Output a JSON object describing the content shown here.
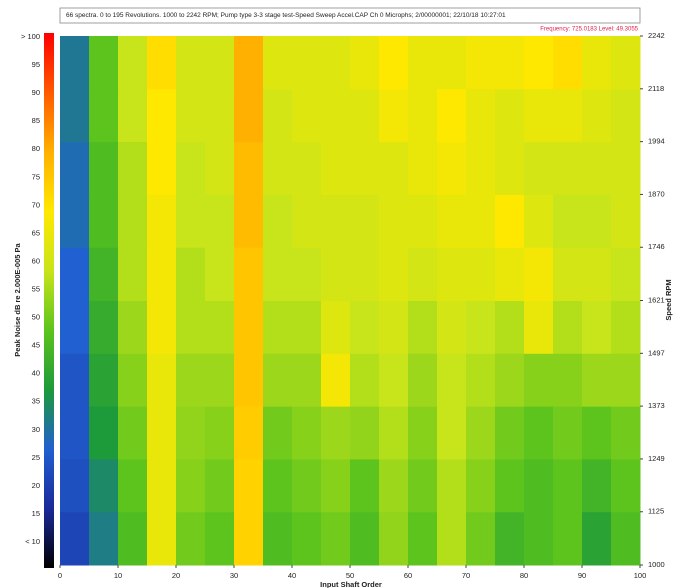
{
  "chart_data": {
    "type": "heatmap",
    "title": "66 spectra. 0 to 195 Revolutions. 1000 to 2242 RPM; Pump type 3-3 stage test-Speed Sweep Accel.CAP Ch 0 Microphs; 2/00000001; 22/10/18 10:27:01",
    "annotation": "Frequency: 725.0183  Level: 49.3055",
    "x_label": "Input Shaft Order",
    "y_label": "Speed RPM",
    "colorbar_label": "Peak Noise dB re 2.000E-005 Pa",
    "xlim": [
      0,
      100
    ],
    "xticks": [
      0,
      10,
      20,
      30,
      40,
      50,
      60,
      70,
      80,
      90,
      100
    ],
    "ylim": [
      1000,
      2242
    ],
    "yticks": [
      1000,
      1125,
      1249,
      1373,
      1497,
      1621,
      1746,
      1870,
      1994,
      2118,
      2242
    ],
    "clim": [
      10,
      100
    ],
    "cticks": [
      {
        "value": 10,
        "label": "< 10"
      },
      15,
      20,
      25,
      30,
      35,
      40,
      45,
      50,
      55,
      60,
      65,
      70,
      75,
      80,
      85,
      90,
      95,
      {
        "value": 100,
        "label": "> 100"
      }
    ],
    "colorscale": [
      "#000000",
      "#1a2a9a",
      "#2060d0",
      "#1d9a3a",
      "#5cc41c",
      "#c8e41a",
      "#ffe800",
      "#ffb000",
      "#ff5a00",
      "#ff0000"
    ],
    "xbins": [
      0,
      5,
      10,
      15,
      20,
      25,
      30,
      35,
      40,
      45,
      50,
      55,
      60,
      65,
      70,
      75,
      80,
      85,
      90,
      95,
      100
    ],
    "ybins": [
      1000,
      1125,
      1249,
      1373,
      1497,
      1621,
      1746,
      1870,
      1994,
      2118,
      2242
    ],
    "z": [
      [
        25,
        35,
        48,
        66,
        52,
        50,
        74,
        48,
        50,
        52,
        48,
        55,
        50,
        58,
        52,
        46,
        48,
        50,
        42,
        48
      ],
      [
        27,
        37,
        50,
        66,
        54,
        52,
        74,
        50,
        52,
        54,
        50,
        56,
        52,
        58,
        54,
        50,
        48,
        50,
        46,
        50
      ],
      [
        28,
        40,
        52,
        66,
        55,
        54,
        75,
        52,
        54,
        56,
        55,
        58,
        54,
        60,
        56,
        52,
        50,
        52,
        50,
        52
      ],
      [
        28,
        42,
        54,
        66,
        56,
        56,
        76,
        56,
        56,
        68,
        58,
        60,
        56,
        60,
        58,
        56,
        54,
        54,
        56,
        56
      ],
      [
        30,
        44,
        56,
        68,
        58,
        58,
        76,
        58,
        58,
        64,
        60,
        62,
        58,
        62,
        60,
        58,
        66,
        58,
        60,
        58
      ],
      [
        30,
        46,
        58,
        68,
        58,
        60,
        76,
        60,
        60,
        62,
        62,
        64,
        62,
        64,
        64,
        66,
        68,
        62,
        62,
        60
      ],
      [
        32,
        48,
        58,
        68,
        60,
        60,
        78,
        60,
        62,
        62,
        62,
        64,
        64,
        66,
        66,
        70,
        64,
        60,
        60,
        62
      ],
      [
        32,
        48,
        58,
        70,
        60,
        62,
        78,
        62,
        62,
        64,
        64,
        64,
        66,
        68,
        66,
        64,
        62,
        62,
        62,
        62
      ],
      [
        34,
        50,
        60,
        70,
        62,
        62,
        80,
        62,
        64,
        64,
        64,
        68,
        66,
        70,
        66,
        64,
        66,
        66,
        64,
        62
      ],
      [
        34,
        50,
        60,
        72,
        62,
        62,
        80,
        64,
        64,
        64,
        66,
        70,
        66,
        66,
        68,
        68,
        70,
        72,
        66,
        64
      ]
    ]
  }
}
